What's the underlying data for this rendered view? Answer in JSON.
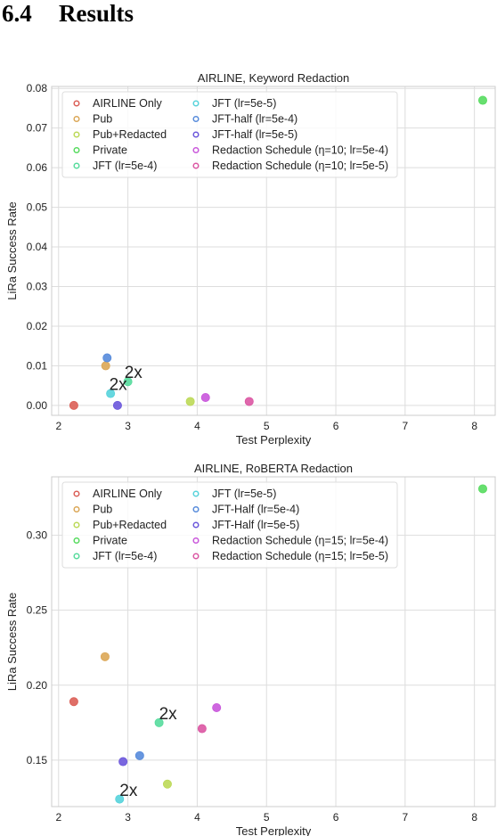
{
  "heading": {
    "number": "6.4",
    "text": "Results"
  },
  "chart_data": [
    {
      "type": "scatter",
      "title": "AIRLINE, Keyword Redaction",
      "xlabel": "Test Perplexity",
      "ylabel": "LiRa Success Rate",
      "xlim": [
        1.9,
        8.3
      ],
      "ylim": [
        -0.0025,
        0.0805
      ],
      "xticks": [
        2,
        3,
        4,
        5,
        6,
        7,
        8
      ],
      "yticks": [
        0.0,
        0.01,
        0.02,
        0.03,
        0.04,
        0.05,
        0.06,
        0.07,
        0.08
      ],
      "ytick_labels": [
        "0.00",
        "0.01",
        "0.02",
        "0.03",
        "0.04",
        "0.05",
        "0.06",
        "0.07",
        "0.08"
      ],
      "grid": true,
      "legend_location": "upper-left",
      "series": [
        {
          "name": "AIRLINE Only",
          "color": "#db5f57",
          "points": [
            [
              2.22,
              0.0
            ]
          ]
        },
        {
          "name": "Pub",
          "color": "#dba757",
          "points": [
            [
              2.68,
              0.01
            ]
          ]
        },
        {
          "name": "Pub+Redacted",
          "color": "#bcd957",
          "points": [
            [
              3.9,
              0.001
            ]
          ]
        },
        {
          "name": "Private",
          "color": "#57db5f",
          "points": [
            [
              8.12,
              0.077
            ]
          ]
        },
        {
          "name": "JFT (lr=5e-4)",
          "color": "#57db9d",
          "points": [
            [
              3.0,
              0.006
            ]
          ]
        },
        {
          "name": "JFT (lr=5e-5)",
          "color": "#57d3db",
          "points": [
            [
              2.75,
              0.003
            ]
          ]
        },
        {
          "name": "JFT-half (lr=5e-4)",
          "color": "#578bdb",
          "points": [
            [
              2.7,
              0.012
            ]
          ]
        },
        {
          "name": "JFT-half (lr=5e-5)",
          "color": "#6b57db",
          "points": [
            [
              2.85,
              0.0
            ]
          ]
        },
        {
          "name": "Redaction Schedule (η=10; lr=5e-4)",
          "color": "#c957db",
          "points": [
            [
              4.12,
              0.002
            ]
          ]
        },
        {
          "name": "Redaction Schedule (η=10; lr=5e-5)",
          "color": "#db57a3",
          "points": [
            [
              4.75,
              0.001
            ]
          ]
        }
      ],
      "annotations": [
        {
          "text": "2x",
          "x": 2.95,
          "y": 0.0065
        },
        {
          "text": "2x",
          "x": 2.73,
          "y": 0.0035
        }
      ]
    },
    {
      "type": "scatter",
      "title": "AIRLINE, RoBERTA Redaction",
      "xlabel": "Test Perplexity",
      "ylabel": "LiRa Success Rate",
      "xlim": [
        1.9,
        8.3
      ],
      "ylim": [
        0.119,
        0.339
      ],
      "xticks": [
        2,
        3,
        4,
        5,
        6,
        7,
        8
      ],
      "yticks": [
        0.15,
        0.2,
        0.25,
        0.3
      ],
      "ytick_labels": [
        "0.15",
        "0.20",
        "0.25",
        "0.30"
      ],
      "grid": true,
      "legend_location": "upper-left",
      "series": [
        {
          "name": "AIRLINE Only",
          "color": "#db5f57",
          "points": [
            [
              2.22,
              0.189
            ]
          ]
        },
        {
          "name": "Pub",
          "color": "#dba757",
          "points": [
            [
              2.67,
              0.219
            ]
          ]
        },
        {
          "name": "Pub+Redacted",
          "color": "#bcd957",
          "points": [
            [
              3.57,
              0.134
            ]
          ]
        },
        {
          "name": "Private",
          "color": "#57db5f",
          "points": [
            [
              8.12,
              0.331
            ]
          ]
        },
        {
          "name": "JFT (lr=5e-4)",
          "color": "#57db9d",
          "points": [
            [
              3.45,
              0.175
            ]
          ]
        },
        {
          "name": "JFT (lr=5e-5)",
          "color": "#57d3db",
          "points": [
            [
              2.88,
              0.124
            ]
          ]
        },
        {
          "name": "JFT-Half (lr=5e-4)",
          "color": "#578bdb",
          "points": [
            [
              3.17,
              0.153
            ]
          ]
        },
        {
          "name": "JFT-Half (lr=5e-5)",
          "color": "#6b57db",
          "points": [
            [
              2.93,
              0.149
            ]
          ]
        },
        {
          "name": "Redaction Schedule (η=15; lr=5e-4)",
          "color": "#c957db",
          "points": [
            [
              4.28,
              0.185
            ]
          ]
        },
        {
          "name": "Redaction Schedule (η=15; lr=5e-5)",
          "color": "#db57a3",
          "points": [
            [
              4.07,
              0.171
            ]
          ]
        }
      ],
      "annotations": [
        {
          "text": "2x",
          "x": 3.45,
          "y": 0.176
        },
        {
          "text": "2x",
          "x": 2.88,
          "y": 0.125
        }
      ]
    }
  ]
}
